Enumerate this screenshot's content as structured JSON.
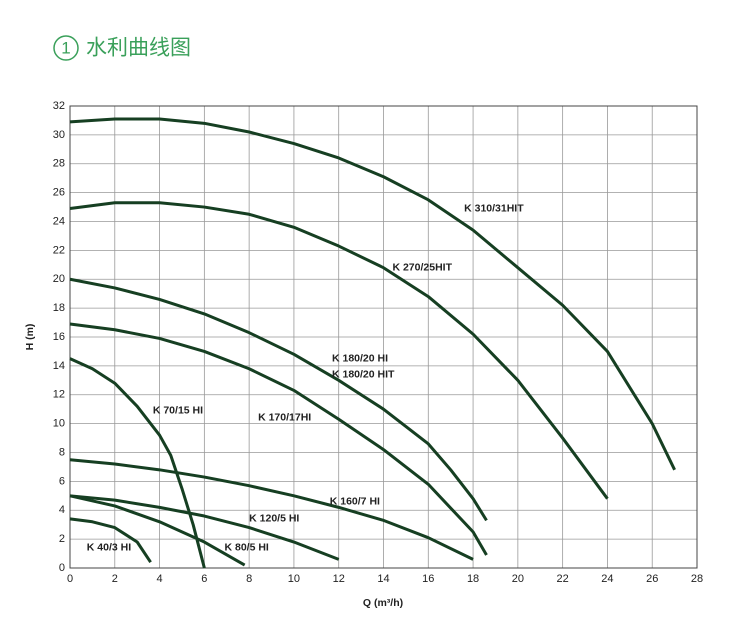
{
  "chart_data": {
    "type": "line",
    "number": "1",
    "title": "水利曲线图",
    "x_label": "Q (m³/h)",
    "y_label": "H (m)",
    "xlim": [
      0,
      28
    ],
    "ylim": [
      0,
      32
    ],
    "xticks": [
      0,
      2,
      4,
      6,
      8,
      10,
      12,
      14,
      16,
      18,
      20,
      22,
      24,
      26,
      28
    ],
    "yticks": [
      0,
      2,
      4,
      6,
      8,
      10,
      12,
      14,
      16,
      18,
      20,
      22,
      24,
      26,
      28,
      30,
      32
    ],
    "grid": true,
    "color": "#163f22",
    "annotation": "K 180/20 HIT",
    "series": [
      {
        "name": "K 310/31HIT",
        "x": [
          0,
          2,
          4,
          6,
          8,
          10,
          12,
          14,
          16,
          18,
          20,
          22,
          24,
          26,
          27
        ],
        "values": [
          30.9,
          31.1,
          31.1,
          30.8,
          30.2,
          29.4,
          28.4,
          27.1,
          25.5,
          23.4,
          20.8,
          18.2,
          15.0,
          10.0,
          6.8
        ]
      },
      {
        "name": "K 270/25HIT",
        "x": [
          0,
          2,
          4,
          6,
          8,
          10,
          12,
          14,
          16,
          18,
          20,
          22,
          24
        ],
        "values": [
          24.9,
          25.3,
          25.3,
          25.0,
          24.5,
          23.6,
          22.3,
          20.8,
          18.8,
          16.2,
          13.0,
          9.0,
          4.8
        ]
      },
      {
        "name": "K 180/20 HI",
        "x": [
          0,
          2,
          4,
          6,
          8,
          10,
          12,
          14,
          16,
          17,
          18,
          18.6
        ],
        "values": [
          20,
          19.4,
          18.6,
          17.6,
          16.3,
          14.8,
          13.0,
          11.0,
          8.6,
          6.8,
          4.8,
          3.3
        ]
      },
      {
        "name": "K 170/17HI",
        "x": [
          0,
          2,
          4,
          6,
          8,
          10,
          12,
          14,
          16,
          18,
          18.6
        ],
        "values": [
          16.9,
          16.5,
          15.9,
          15.0,
          13.8,
          12.3,
          10.3,
          8.2,
          5.8,
          2.5,
          0.9
        ]
      },
      {
        "name": "K 160/7 HI",
        "x": [
          0,
          2,
          4,
          6,
          8,
          10,
          12,
          14,
          16,
          18
        ],
        "values": [
          7.5,
          7.2,
          6.8,
          6.3,
          5.7,
          5.0,
          4.2,
          3.3,
          2.1,
          0.6
        ]
      },
      {
        "name": "K 120/5 HI",
        "x": [
          0,
          2,
          4,
          6,
          8,
          10,
          12
        ],
        "values": [
          5.0,
          4.7,
          4.2,
          3.6,
          2.8,
          1.8,
          0.6
        ]
      },
      {
        "name": "K 80/5 HI",
        "x": [
          0,
          2,
          4,
          6,
          7.8
        ],
        "values": [
          5.0,
          4.3,
          3.2,
          1.8,
          0.2
        ]
      },
      {
        "name": "K 70/15 HI",
        "x": [
          0,
          1,
          2,
          3,
          4,
          4.5,
          5,
          5.5,
          6
        ],
        "values": [
          14.5,
          13.8,
          12.8,
          11.2,
          9.2,
          7.8,
          5.5,
          3.0,
          0
        ]
      },
      {
        "name": "K 40/3 HI",
        "x": [
          0,
          1,
          2,
          3,
          3.6
        ],
        "values": [
          3.4,
          3.2,
          2.8,
          1.8,
          0.4
        ]
      }
    ]
  }
}
